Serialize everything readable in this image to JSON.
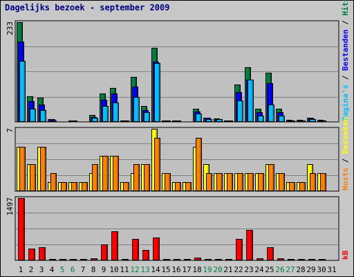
{
  "chart_data": {
    "type": "bar",
    "title": "Dagelijks bezoek - september 2009",
    "categories": [
      "1",
      "2",
      "3",
      "4",
      "5",
      "6",
      "7",
      "8",
      "9",
      "10",
      "11",
      "12",
      "13",
      "14",
      "15",
      "16",
      "17",
      "18",
      "19",
      "20",
      "21",
      "22",
      "23",
      "24",
      "25",
      "26",
      "27",
      "28",
      "29",
      "30",
      "31"
    ],
    "weekend_days": [
      "5",
      "6",
      "12",
      "13",
      "19",
      "20",
      "26",
      "27"
    ],
    "panels": [
      {
        "name": "hits-pages-files",
        "ymax": 233,
        "ymax_label": "233",
        "side_label": "Pagina's / Bestanden / Hits",
        "series": [
          {
            "name": "Hits",
            "color": "#008040",
            "values": [
              233,
              60,
              56,
              7,
              0,
              3,
              0,
              16,
              66,
              80,
              2,
              105,
              38,
              173,
              4,
              2,
              0,
              30,
              10,
              8,
              2,
              87,
              128,
              30,
              115,
              30,
              5,
              5,
              10,
              5,
              0
            ]
          },
          {
            "name": "Bestanden",
            "color": "#0000ff",
            "values": [
              188,
              48,
              40,
              6,
              0,
              2,
              0,
              12,
              52,
              66,
              2,
              82,
              28,
              140,
              3,
              2,
              0,
              24,
              9,
              7,
              2,
              70,
              98,
              22,
              90,
              22,
              4,
              4,
              8,
              4,
              0
            ]
          },
          {
            "name": "Pagina's",
            "color": "#00c0ff",
            "values": [
              142,
              30,
              28,
              4,
              0,
              2,
              0,
              9,
              38,
              46,
              2,
              58,
              22,
              138,
              3,
              2,
              0,
              20,
              7,
              6,
              2,
              50,
              98,
              15,
              40,
              14,
              3,
              3,
              7,
              3,
              0
            ]
          }
        ]
      },
      {
        "name": "visits-hosts",
        "ymax": 7,
        "ymax_label": "7",
        "side_label": "Hosts / Bezoeken",
        "series": [
          {
            "name": "Bezoeken",
            "color": "#ffff00",
            "values": [
              5,
              3,
              5,
              1,
              1,
              1,
              1,
              2,
              4,
              4,
              1,
              2,
              3,
              7,
              2,
              1,
              1,
              5,
              3,
              2,
              2,
              2,
              2,
              2,
              3,
              2,
              1,
              1,
              3,
              2,
              0
            ]
          },
          {
            "name": "Hosts",
            "color": "#ff8000",
            "values": [
              5,
              3,
              5,
              2,
              1,
              1,
              1,
              3,
              4,
              4,
              1,
              3,
              3,
              6,
              2,
              1,
              1,
              6,
              2,
              2,
              2,
              2,
              2,
              2,
              3,
              2,
              1,
              1,
              2,
              2,
              0
            ]
          }
        ]
      },
      {
        "name": "kbytes",
        "ymax": 1497,
        "ymax_label": "1497",
        "side_label": "kB",
        "series": [
          {
            "name": "kB",
            "color": "#ff0000",
            "values": [
              1497,
              290,
              320,
              10,
              8,
              10,
              10,
              55,
              385,
              705,
              10,
              510,
              245,
              550,
              10,
              10,
              10,
              60,
              10,
              10,
              10,
              515,
              740,
              50,
              320,
              50,
              10,
              10,
              10,
              10,
              0
            ]
          }
        ]
      }
    ]
  }
}
